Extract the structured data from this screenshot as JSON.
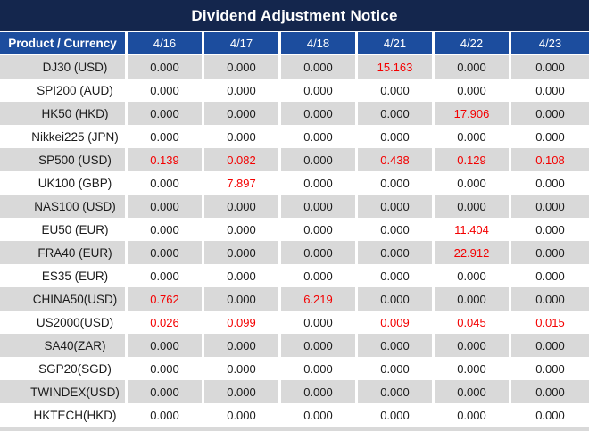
{
  "title": "Dividend Adjustment Notice",
  "colors": {
    "title_bg": "#14264d",
    "header_bg": "#1c4d9e",
    "row_alt_bg": "#d9d9d9",
    "row_bg": "#ffffff",
    "highlight": "#f40000",
    "text": "#1a1a1a"
  },
  "table": {
    "product_header": "Product / Currency",
    "dates": [
      "4/16",
      "4/17",
      "4/18",
      "4/21",
      "4/22",
      "4/23"
    ],
    "rows": [
      {
        "product": "DJ30 (USD)",
        "values": [
          {
            "v": "0.000",
            "red": false
          },
          {
            "v": "0.000",
            "red": false
          },
          {
            "v": "0.000",
            "red": false
          },
          {
            "v": "15.163",
            "red": true
          },
          {
            "v": "0.000",
            "red": false
          },
          {
            "v": "0.000",
            "red": false
          }
        ]
      },
      {
        "product": "SPI200 (AUD)",
        "values": [
          {
            "v": "0.000",
            "red": false
          },
          {
            "v": "0.000",
            "red": false
          },
          {
            "v": "0.000",
            "red": false
          },
          {
            "v": "0.000",
            "red": false
          },
          {
            "v": "0.000",
            "red": false
          },
          {
            "v": "0.000",
            "red": false
          }
        ]
      },
      {
        "product": "HK50 (HKD)",
        "values": [
          {
            "v": "0.000",
            "red": false
          },
          {
            "v": "0.000",
            "red": false
          },
          {
            "v": "0.000",
            "red": false
          },
          {
            "v": "0.000",
            "red": false
          },
          {
            "v": "17.906",
            "red": true
          },
          {
            "v": "0.000",
            "red": false
          }
        ]
      },
      {
        "product": "Nikkei225 (JPN)",
        "values": [
          {
            "v": "0.000",
            "red": false
          },
          {
            "v": "0.000",
            "red": false
          },
          {
            "v": "0.000",
            "red": false
          },
          {
            "v": "0.000",
            "red": false
          },
          {
            "v": "0.000",
            "red": false
          },
          {
            "v": "0.000",
            "red": false
          }
        ]
      },
      {
        "product": "SP500 (USD)",
        "values": [
          {
            "v": "0.139",
            "red": true
          },
          {
            "v": "0.082",
            "red": true
          },
          {
            "v": "0.000",
            "red": false
          },
          {
            "v": "0.438",
            "red": true
          },
          {
            "v": "0.129",
            "red": true
          },
          {
            "v": "0.108",
            "red": true
          }
        ]
      },
      {
        "product": "UK100 (GBP)",
        "values": [
          {
            "v": "0.000",
            "red": false
          },
          {
            "v": "7.897",
            "red": true
          },
          {
            "v": "0.000",
            "red": false
          },
          {
            "v": "0.000",
            "red": false
          },
          {
            "v": "0.000",
            "red": false
          },
          {
            "v": "0.000",
            "red": false
          }
        ]
      },
      {
        "product": "NAS100 (USD)",
        "values": [
          {
            "v": "0.000",
            "red": false
          },
          {
            "v": "0.000",
            "red": false
          },
          {
            "v": "0.000",
            "red": false
          },
          {
            "v": "0.000",
            "red": false
          },
          {
            "v": "0.000",
            "red": false
          },
          {
            "v": "0.000",
            "red": false
          }
        ]
      },
      {
        "product": "EU50 (EUR)",
        "values": [
          {
            "v": "0.000",
            "red": false
          },
          {
            "v": "0.000",
            "red": false
          },
          {
            "v": "0.000",
            "red": false
          },
          {
            "v": "0.000",
            "red": false
          },
          {
            "v": "11.404",
            "red": true
          },
          {
            "v": "0.000",
            "red": false
          }
        ]
      },
      {
        "product": "FRA40 (EUR)",
        "values": [
          {
            "v": "0.000",
            "red": false
          },
          {
            "v": "0.000",
            "red": false
          },
          {
            "v": "0.000",
            "red": false
          },
          {
            "v": "0.000",
            "red": false
          },
          {
            "v": "22.912",
            "red": true
          },
          {
            "v": "0.000",
            "red": false
          }
        ]
      },
      {
        "product": "ES35 (EUR)",
        "values": [
          {
            "v": "0.000",
            "red": false
          },
          {
            "v": "0.000",
            "red": false
          },
          {
            "v": "0.000",
            "red": false
          },
          {
            "v": "0.000",
            "red": false
          },
          {
            "v": "0.000",
            "red": false
          },
          {
            "v": "0.000",
            "red": false
          }
        ]
      },
      {
        "product": "CHINA50(USD)",
        "values": [
          {
            "v": "0.762",
            "red": true
          },
          {
            "v": "0.000",
            "red": false
          },
          {
            "v": "6.219",
            "red": true
          },
          {
            "v": "0.000",
            "red": false
          },
          {
            "v": "0.000",
            "red": false
          },
          {
            "v": "0.000",
            "red": false
          }
        ]
      },
      {
        "product": "US2000(USD)",
        "values": [
          {
            "v": "0.026",
            "red": true
          },
          {
            "v": "0.099",
            "red": true
          },
          {
            "v": "0.000",
            "red": false
          },
          {
            "v": "0.009",
            "red": true
          },
          {
            "v": "0.045",
            "red": true
          },
          {
            "v": "0.015",
            "red": true
          }
        ]
      },
      {
        "product": "SA40(ZAR)",
        "values": [
          {
            "v": "0.000",
            "red": false
          },
          {
            "v": "0.000",
            "red": false
          },
          {
            "v": "0.000",
            "red": false
          },
          {
            "v": "0.000",
            "red": false
          },
          {
            "v": "0.000",
            "red": false
          },
          {
            "v": "0.000",
            "red": false
          }
        ]
      },
      {
        "product": "SGP20(SGD)",
        "values": [
          {
            "v": "0.000",
            "red": false
          },
          {
            "v": "0.000",
            "red": false
          },
          {
            "v": "0.000",
            "red": false
          },
          {
            "v": "0.000",
            "red": false
          },
          {
            "v": "0.000",
            "red": false
          },
          {
            "v": "0.000",
            "red": false
          }
        ]
      },
      {
        "product": "TWINDEX(USD)",
        "values": [
          {
            "v": "0.000",
            "red": false
          },
          {
            "v": "0.000",
            "red": false
          },
          {
            "v": "0.000",
            "red": false
          },
          {
            "v": "0.000",
            "red": false
          },
          {
            "v": "0.000",
            "red": false
          },
          {
            "v": "0.000",
            "red": false
          }
        ]
      },
      {
        "product": "HKTECH(HKD)",
        "values": [
          {
            "v": "0.000",
            "red": false
          },
          {
            "v": "0.000",
            "red": false
          },
          {
            "v": "0.000",
            "red": false
          },
          {
            "v": "0.000",
            "red": false
          },
          {
            "v": "0.000",
            "red": false
          },
          {
            "v": "0.000",
            "red": false
          }
        ]
      }
    ]
  }
}
